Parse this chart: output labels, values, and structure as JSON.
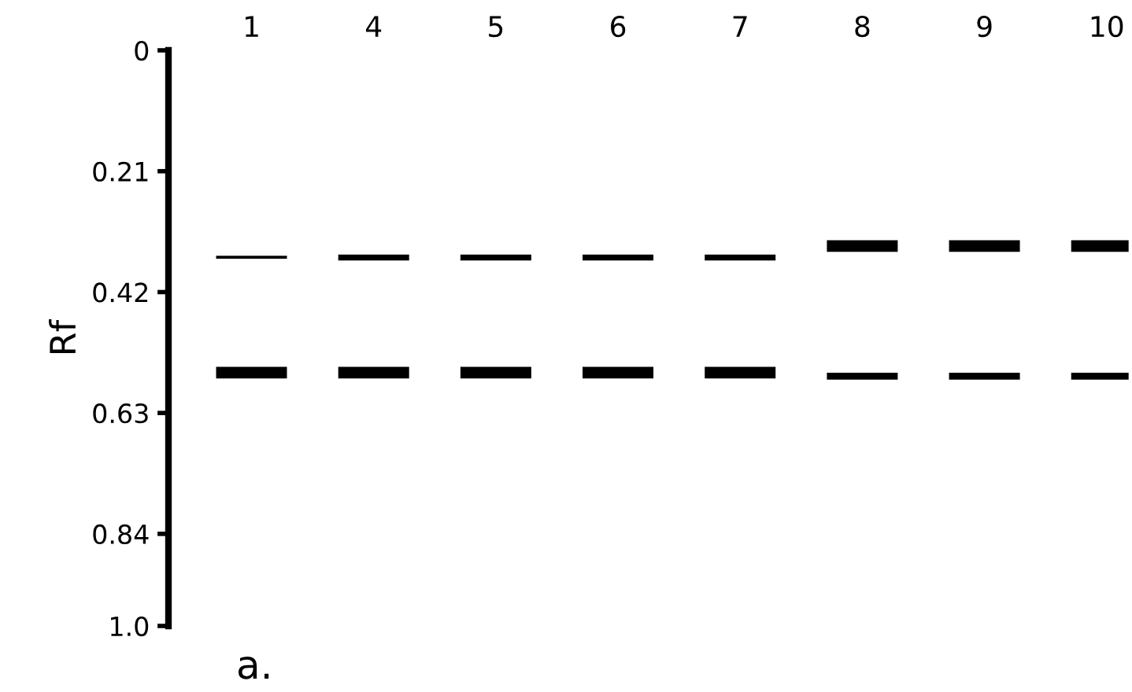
{
  "chart_data": {
    "type": "bar",
    "ylabel": "Rf",
    "categories": [
      "1",
      "4",
      "5",
      "6",
      "7",
      "8",
      "9",
      "10"
    ],
    "series": [
      {
        "color": "#000000",
        "base": [
          0.357,
          0.355,
          0.355,
          0.355,
          0.355,
          0.33,
          0.33,
          0.33
        ],
        "values": [
          0.005,
          0.01,
          0.01,
          0.01,
          0.01,
          0.02,
          0.02,
          0.02
        ]
      },
      {
        "color": "#000000",
        "base": [
          0.55,
          0.55,
          0.55,
          0.55,
          0.55,
          0.56,
          0.56,
          0.56
        ],
        "values": [
          0.02,
          0.02,
          0.02,
          0.02,
          0.02,
          0.012,
          0.012,
          0.012
        ]
      }
    ],
    "ylim": [
      1.0,
      0
    ],
    "yticks": [
      0,
      0.21,
      0.42,
      0.63,
      0.84,
      {
        "value": 1,
        "label": "1.0"
      }
    ],
    "grid": false,
    "legend": false,
    "annotations": [
      "a."
    ]
  }
}
